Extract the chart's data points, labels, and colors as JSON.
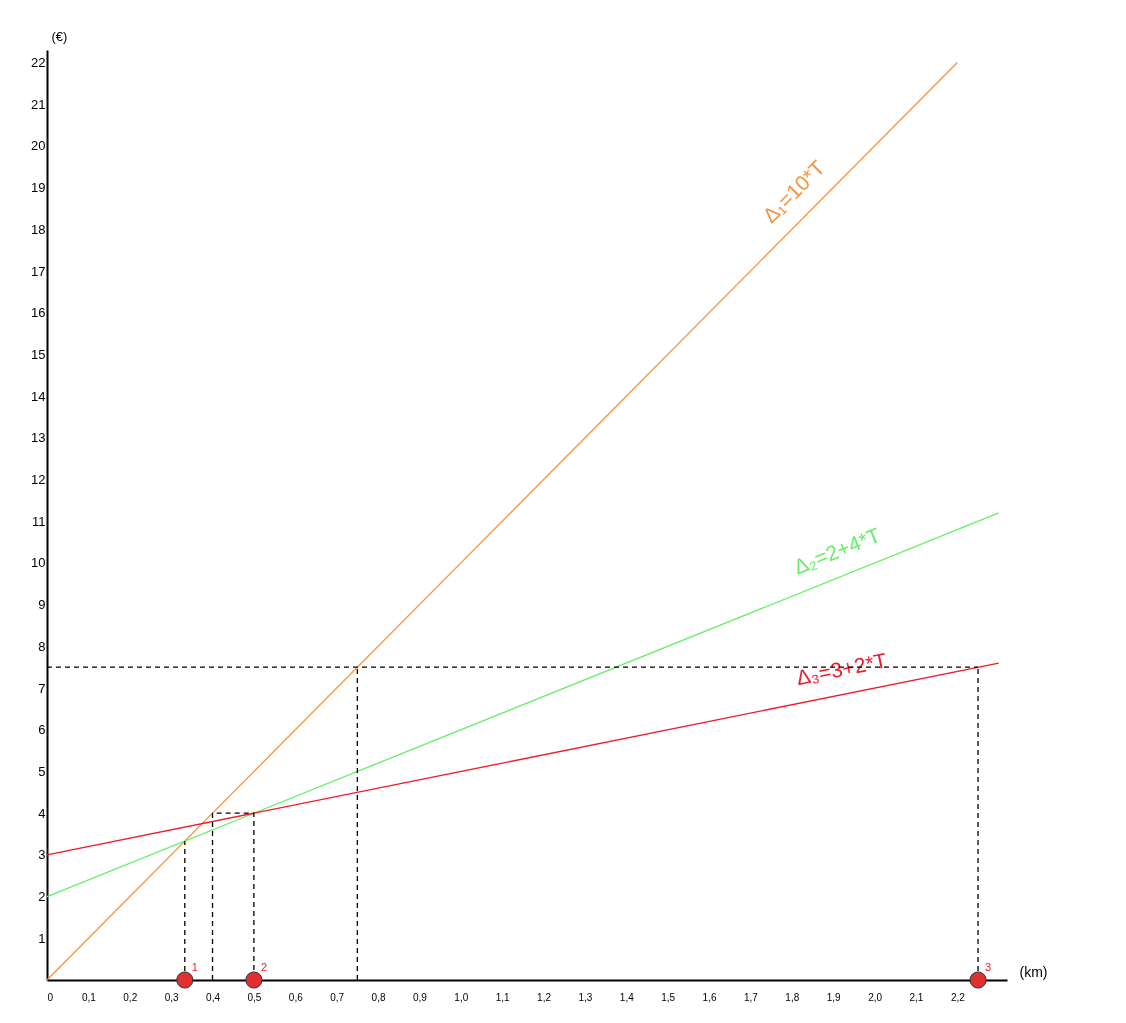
{
  "chart_data": {
    "type": "line",
    "xlabel": "(km)",
    "ylabel": "(€)",
    "xlim": [
      0,
      2.32
    ],
    "ylim": [
      0,
      22.3
    ],
    "xticks": [
      {
        "value": 0,
        "label": "0"
      },
      {
        "value": 0.1,
        "label": "0,1"
      },
      {
        "value": 0.2,
        "label": "0,2"
      },
      {
        "value": 0.3,
        "label": "0,3"
      },
      {
        "value": 0.4,
        "label": "0,4"
      },
      {
        "value": 0.5,
        "label": "0,5"
      },
      {
        "value": 0.6,
        "label": "0,6"
      },
      {
        "value": 0.7,
        "label": "0,7"
      },
      {
        "value": 0.8,
        "label": "0,8"
      },
      {
        "value": 0.9,
        "label": "0,9"
      },
      {
        "value": 1.0,
        "label": "1,0"
      },
      {
        "value": 1.1,
        "label": "1,1"
      },
      {
        "value": 1.2,
        "label": "1,2"
      },
      {
        "value": 1.3,
        "label": "1,3"
      },
      {
        "value": 1.4,
        "label": "1,4"
      },
      {
        "value": 1.5,
        "label": "1,5"
      },
      {
        "value": 1.6,
        "label": "1,6"
      },
      {
        "value": 1.7,
        "label": "1,7"
      },
      {
        "value": 1.8,
        "label": "1,8"
      },
      {
        "value": 1.9,
        "label": "1,9"
      },
      {
        "value": 2.0,
        "label": "2,0"
      },
      {
        "value": 2.1,
        "label": "2,1"
      },
      {
        "value": 2.2,
        "label": "2,2"
      }
    ],
    "yticks": [
      1,
      2,
      3,
      4,
      5,
      6,
      7,
      8,
      9,
      10,
      11,
      12,
      13,
      14,
      15,
      16,
      17,
      18,
      19,
      20,
      21,
      22
    ],
    "grid": false,
    "annotations": [
      {
        "text": "1",
        "x": 0.333,
        "y": 0
      },
      {
        "text": "2",
        "x": 0.5,
        "y": 0
      },
      {
        "text": "3",
        "x": 2.25,
        "y": 0
      }
    ],
    "series": [
      {
        "name": "Δ₁=10*T",
        "color": "#f7923a",
        "x": [
          0,
          2.2
        ],
        "values": [
          0,
          22
        ]
      },
      {
        "name": "Δ₂=2+4*T",
        "color": "#66ee66",
        "x": [
          0,
          2.3
        ],
        "values": [
          2,
          11.2
        ]
      },
      {
        "name": "Δ₃=3+2*T",
        "color": "#ee1c2a",
        "x": [
          0,
          2.3
        ],
        "values": [
          3,
          7.6
        ]
      },
      {
        "color": "#000000",
        "line_style": "dashed",
        "x": [
          0,
          2.25
        ],
        "values": [
          7.5,
          7.5
        ]
      },
      {
        "color": "#000000",
        "line_style": "dashed",
        "x": [
          0.75,
          0.75
        ],
        "values": [
          0,
          7.5
        ]
      },
      {
        "color": "#000000",
        "line_style": "dashed",
        "x": [
          2.25,
          2.25
        ],
        "values": [
          0,
          7.5
        ]
      },
      {
        "color": "#000000",
        "line_style": "dashed",
        "x": [
          0.333,
          0.333
        ],
        "values": [
          0,
          3.33
        ]
      },
      {
        "color": "#000000",
        "line_style": "dashed",
        "x": [
          0.4,
          0.4,
          0.5,
          0.5
        ],
        "values": [
          0,
          4,
          4,
          0
        ]
      },
      {
        "type": "scatter",
        "marker": "circle",
        "color": "#e03030",
        "x": [
          0.333,
          0.5,
          2.25
        ],
        "values": [
          0,
          0,
          0
        ]
      }
    ]
  }
}
